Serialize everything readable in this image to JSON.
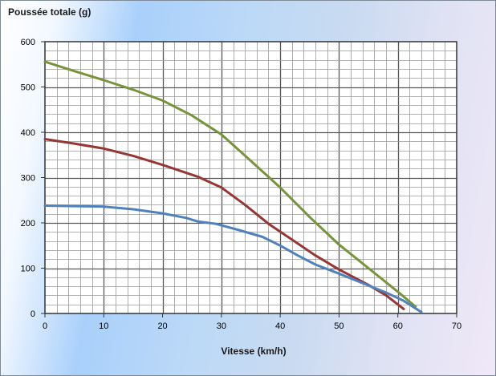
{
  "chart_data": {
    "type": "line",
    "title": "Poussée totale (g)",
    "xlabel": "Vitesse (km/h)",
    "ylabel": "",
    "xlim": [
      0,
      70
    ],
    "ylim": [
      0,
      600
    ],
    "x_ticks": [
      0,
      10,
      20,
      30,
      40,
      50,
      60,
      70
    ],
    "y_ticks": [
      0,
      100,
      200,
      300,
      400,
      500,
      600
    ],
    "x_minor_step": 2,
    "y_minor_step": 20,
    "grid": true,
    "legend": "none",
    "series": [
      {
        "color": "#77933c",
        "x": [
          0,
          5,
          10,
          15,
          20,
          25,
          30,
          35,
          40,
          45,
          50,
          55,
          60,
          63
        ],
        "y": [
          556,
          535,
          515,
          494,
          470,
          437,
          395,
          337,
          278,
          213,
          152,
          100,
          48,
          15
        ]
      },
      {
        "color": "#953735",
        "x": [
          0,
          5,
          10,
          15,
          20,
          26,
          30,
          34,
          38,
          42,
          46,
          50,
          55,
          58,
          61
        ],
        "y": [
          385,
          375,
          364,
          348,
          328,
          302,
          278,
          240,
          198,
          163,
          128,
          97,
          63,
          40,
          10
        ]
      },
      {
        "color": "#4f81bd",
        "x": [
          0,
          5,
          10,
          15,
          20,
          24,
          26,
          29,
          33,
          37,
          40,
          43,
          46,
          50,
          54,
          58,
          61,
          64
        ],
        "y": [
          238,
          237,
          236,
          230,
          221,
          211,
          203,
          198,
          184,
          169,
          150,
          128,
          108,
          88,
          67,
          46,
          28,
          3
        ]
      }
    ]
  }
}
